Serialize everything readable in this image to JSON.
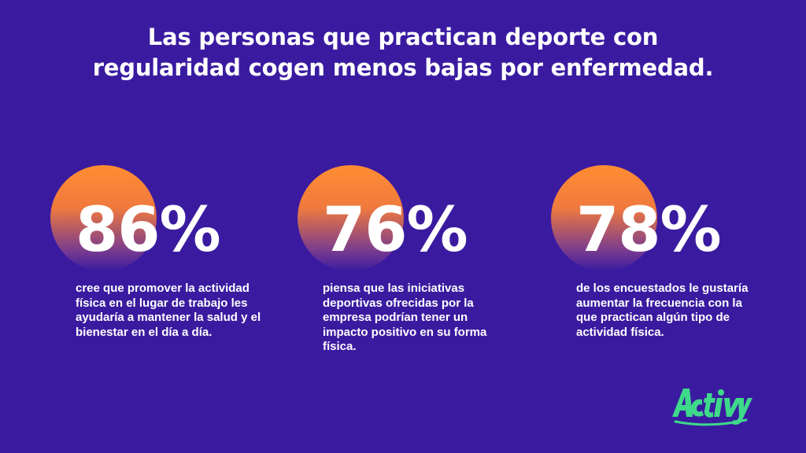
{
  "headline": "Las personas que practican deporte con regularidad cogen menos bajas por enfermedad.",
  "stats": [
    {
      "value": "86%",
      "text": "cree que promover la actividad física en el lugar de trabajo les ayudaría a mantener la salud y el bienestar en el día a día."
    },
    {
      "value": "76%",
      "text": "piensa que las iniciativas deportivas ofrecidas por la empresa podrían tener un impacto positivo en su forma física."
    },
    {
      "value": "78%",
      "text": "de los encuestados le gustaría aumentar la frecuencia con la que practican algún tipo de actividad física."
    }
  ],
  "logo": {
    "text": "Activy",
    "color": "#3ed98a"
  },
  "colors": {
    "background": "#3a1ba0",
    "circle_top": "#ff8d32",
    "circle_bottom": "#3a1ba0",
    "text": "#ffffff"
  }
}
